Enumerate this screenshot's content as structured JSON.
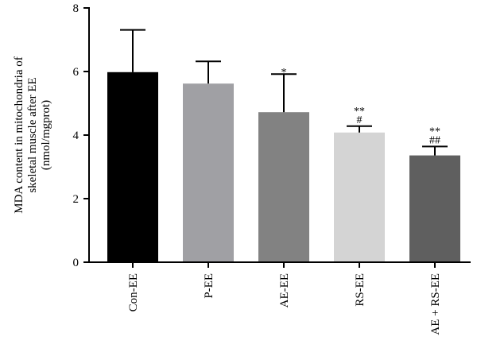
{
  "chart_data": {
    "type": "bar",
    "title": "",
    "ylabel": [
      "MDA content in mitochondria of",
      "skeletal muscle after EE",
      "(nmol/mgprot)"
    ],
    "xlabel": "",
    "ylim": [
      0,
      8
    ],
    "yticks": [
      "0",
      "2",
      "4",
      "6",
      "8"
    ],
    "grid": false,
    "categories": [
      "Con-EE",
      "P-EE",
      "AE-EE",
      "RS-EE",
      "AE + RS-EE"
    ],
    "values": [
      5.98,
      5.62,
      4.72,
      4.08,
      3.36
    ],
    "error": [
      1.33,
      0.7,
      1.2,
      0.2,
      0.28
    ],
    "colors": [
      "#000000",
      "#a0a0a4",
      "#828282",
      "#d4d4d4",
      "#5f5f5f"
    ],
    "annotations": [
      [],
      [],
      [
        "*"
      ],
      [
        "**",
        "#"
      ],
      [
        "**",
        "##"
      ]
    ]
  }
}
